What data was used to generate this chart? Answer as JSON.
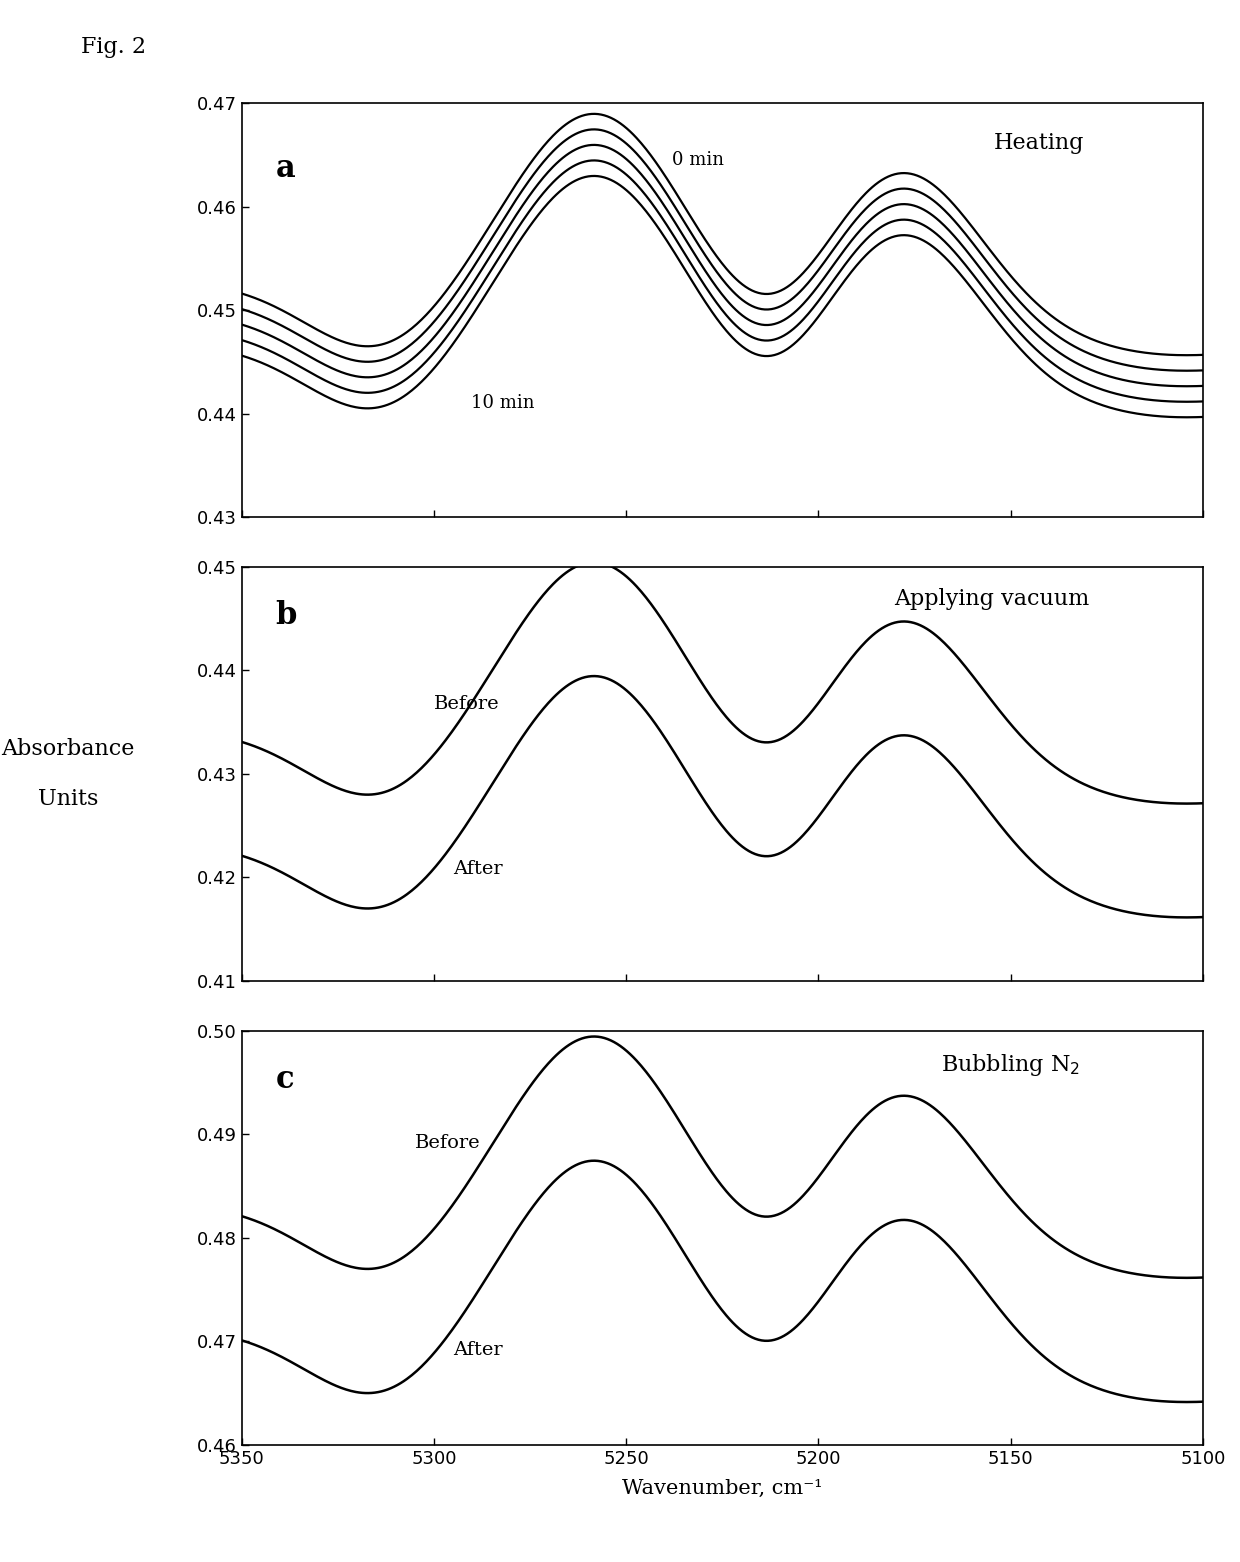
{
  "fig_label": "Fig. 2",
  "xlabel": "Wavenumber, cm⁻¹",
  "ylabel_line1": "Absorbance",
  "ylabel_line2": "Units",
  "x_min": 5100,
  "x_max": 5350,
  "panels": [
    {
      "label": "a",
      "title": "Heating",
      "ylim": [
        0.43,
        0.47
      ],
      "yticks": [
        0.43,
        0.44,
        0.45,
        0.46,
        0.47
      ],
      "n_curves": 5,
      "baselines": [
        0.0,
        -0.0015,
        -0.003,
        -0.0045,
        -0.006
      ],
      "annotation_top": "0 min",
      "annotation_bottom": "10 min"
    },
    {
      "label": "b",
      "title": "Applying vacuum",
      "ylim": [
        0.41,
        0.45
      ],
      "yticks": [
        0.41,
        0.42,
        0.43,
        0.44,
        0.45
      ],
      "n_curves": 2,
      "baselines": [
        0.0,
        -0.011
      ],
      "annotation_top": "Before",
      "annotation_bottom": "After"
    },
    {
      "label": "c",
      "title": "Bubbling N₂",
      "ylim": [
        0.46,
        0.5
      ],
      "yticks": [
        0.46,
        0.47,
        0.48,
        0.49,
        0.5
      ],
      "n_curves": 2,
      "baselines": [
        0.0,
        -0.012
      ],
      "annotation_top": "Before",
      "annotation_bottom": "After"
    }
  ],
  "panel_a_ref_baseline": 0.4505,
  "panel_b_ref_baseline": 0.432,
  "panel_c_ref_baseline": 0.481
}
